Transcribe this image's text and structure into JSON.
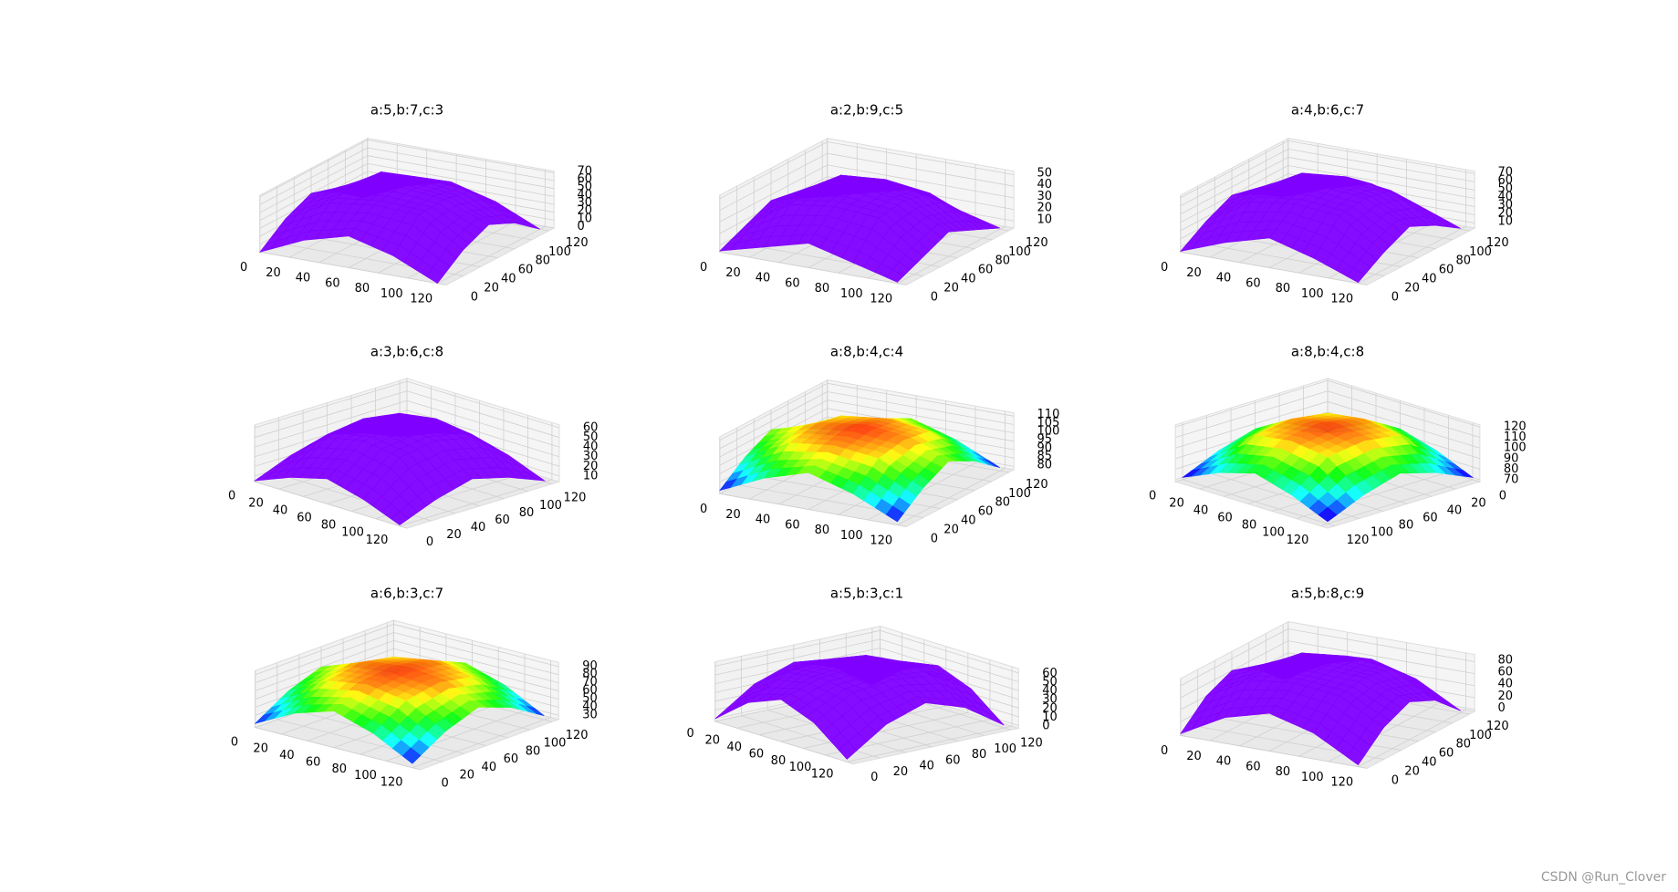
{
  "chart_data": [
    {
      "type": "surface3d",
      "title": "a:5,b:7,c:3",
      "color": "#8000ff",
      "elev": 30,
      "azim": -60,
      "x": [
        0,
        30,
        60,
        90,
        120
      ],
      "y": [
        0,
        30,
        60,
        90,
        120
      ],
      "z": [
        [
          0,
          25,
          40,
          25,
          0
        ],
        [
          25,
          55,
          62,
          60,
          25
        ],
        [
          40,
          62,
          68,
          62,
          40
        ],
        [
          25,
          60,
          62,
          55,
          25
        ],
        [
          0,
          25,
          40,
          25,
          0
        ]
      ],
      "xlim": [
        0,
        126
      ],
      "ylim": [
        0,
        126
      ],
      "zlim": [
        0,
        72
      ],
      "xticks": [
        0,
        20,
        40,
        60,
        80,
        100,
        120
      ],
      "yticks": [
        0,
        20,
        40,
        60,
        80,
        100,
        120
      ],
      "zticks": [
        0,
        10,
        20,
        30,
        40,
        50,
        60,
        70
      ]
    },
    {
      "type": "surface3d",
      "title": "a:2,b:9,c:5",
      "color": "#8000ff",
      "elev": 30,
      "azim": -60,
      "x": [
        0,
        30,
        60,
        90,
        120
      ],
      "y": [
        0,
        30,
        60,
        90,
        120
      ],
      "z": [
        [
          5,
          15,
          25,
          15,
          5
        ],
        [
          15,
          40,
          45,
          42,
          15
        ],
        [
          25,
          45,
          50,
          45,
          25
        ],
        [
          15,
          42,
          45,
          40,
          15
        ],
        [
          5,
          15,
          25,
          15,
          5
        ]
      ],
      "xlim": [
        0,
        126
      ],
      "ylim": [
        0,
        126
      ],
      "zlim": [
        4,
        53
      ],
      "xticks": [
        0,
        20,
        40,
        60,
        80,
        100,
        120
      ],
      "yticks": [
        0,
        20,
        40,
        60,
        80,
        100,
        120
      ],
      "zticks": [
        10,
        20,
        30,
        40,
        50
      ]
    },
    {
      "type": "surface3d",
      "title": "a:4,b:6,c:7",
      "color": "#8000ff",
      "elev": 30,
      "azim": -60,
      "x": [
        0,
        30,
        60,
        90,
        120
      ],
      "y": [
        0,
        30,
        60,
        90,
        120
      ],
      "z": [
        [
          5,
          25,
          40,
          25,
          5
        ],
        [
          25,
          58,
          65,
          60,
          25
        ],
        [
          40,
          65,
          70,
          65,
          40
        ],
        [
          25,
          60,
          65,
          58,
          25
        ],
        [
          5,
          25,
          40,
          25,
          5
        ]
      ],
      "xlim": [
        0,
        126
      ],
      "ylim": [
        0,
        126
      ],
      "zlim": [
        4,
        73
      ],
      "xticks": [
        0,
        20,
        40,
        60,
        80,
        100,
        120
      ],
      "yticks": [
        0,
        20,
        40,
        60,
        80,
        100,
        120
      ],
      "zticks": [
        10,
        20,
        30,
        40,
        50,
        60,
        70
      ]
    },
    {
      "type": "surface3d",
      "title": "a:3,b:6,c:8",
      "color": "#8000ff",
      "elev": 30,
      "azim": -45,
      "x": [
        0,
        30,
        60,
        90,
        120
      ],
      "y": [
        0,
        30,
        60,
        90,
        120
      ],
      "z": [
        [
          5,
          20,
          30,
          20,
          5
        ],
        [
          20,
          50,
          58,
          52,
          20
        ],
        [
          30,
          58,
          62,
          58,
          30
        ],
        [
          20,
          52,
          58,
          50,
          20
        ],
        [
          5,
          20,
          30,
          20,
          5
        ]
      ],
      "xlim": [
        0,
        126
      ],
      "ylim": [
        0,
        126
      ],
      "zlim": [
        4,
        63
      ],
      "xticks": [
        0,
        20,
        40,
        60,
        80,
        100,
        120
      ],
      "yticks": [
        0,
        20,
        40,
        60,
        80,
        100,
        120
      ],
      "zticks": [
        10,
        20,
        30,
        40,
        50,
        60
      ]
    },
    {
      "type": "surface3d",
      "title": "a:8,b:4,c:4",
      "colormap": "rainbow",
      "elev": 30,
      "azim": -60,
      "x": [
        0,
        30,
        60,
        90,
        120
      ],
      "y": [
        0,
        30,
        60,
        90,
        120
      ],
      "z": [
        [
          80,
          92,
          100,
          92,
          80
        ],
        [
          92,
          105,
          108,
          105,
          92
        ],
        [
          100,
          108,
          111,
          108,
          100
        ],
        [
          92,
          105,
          108,
          105,
          92
        ],
        [
          80,
          92,
          100,
          92,
          80
        ]
      ],
      "xlim": [
        0,
        126
      ],
      "ylim": [
        0,
        126
      ],
      "zlim": [
        78,
        112
      ],
      "xticks": [
        0,
        20,
        40,
        60,
        80,
        100,
        120
      ],
      "yticks": [
        0,
        20,
        40,
        60,
        80,
        100,
        120
      ],
      "zticks": [
        80,
        85,
        90,
        95,
        100,
        105,
        110
      ]
    },
    {
      "type": "surface3d",
      "title": "a:8,b:4,c:8",
      "colormap": "rainbow",
      "elev": 30,
      "azim": 45,
      "x": [
        0,
        30,
        60,
        90,
        120
      ],
      "y": [
        0,
        30,
        60,
        90,
        120
      ],
      "z": [
        [
          70,
          85,
          95,
          85,
          70
        ],
        [
          85,
          110,
          115,
          110,
          85
        ],
        [
          95,
          115,
          120,
          115,
          95
        ],
        [
          85,
          110,
          115,
          110,
          85
        ],
        [
          70,
          85,
          95,
          85,
          70
        ]
      ],
      "xlim": [
        0,
        126
      ],
      "ylim": [
        0,
        126
      ],
      "zlim": [
        68,
        122
      ],
      "xticks": [
        0,
        20,
        40,
        60,
        80,
        100,
        120
      ],
      "yticks": [
        0,
        20,
        40,
        60,
        80,
        100,
        120
      ],
      "zticks": [
        70,
        80,
        90,
        100,
        110,
        120
      ]
    },
    {
      "type": "surface3d",
      "title": "a:6,b:3,c:7",
      "colormap": "rainbow",
      "elev": 30,
      "azim": -50,
      "x": [
        0,
        30,
        60,
        90,
        120
      ],
      "y": [
        0,
        30,
        60,
        90,
        120
      ],
      "z": [
        [
          30,
          55,
          70,
          55,
          30
        ],
        [
          55,
          80,
          88,
          80,
          55
        ],
        [
          70,
          88,
          92,
          88,
          70
        ],
        [
          55,
          80,
          88,
          80,
          55
        ],
        [
          30,
          55,
          70,
          55,
          30
        ]
      ],
      "xlim": [
        0,
        126
      ],
      "ylim": [
        0,
        126
      ],
      "zlim": [
        25,
        95
      ],
      "xticks": [
        0,
        20,
        40,
        60,
        80,
        100,
        120
      ],
      "yticks": [
        0,
        20,
        40,
        60,
        80,
        100,
        120
      ],
      "zticks": [
        30,
        40,
        50,
        60,
        70,
        80,
        90
      ]
    },
    {
      "type": "surface3d",
      "title": "a:5,b:3,c:1",
      "color": "#8000ff",
      "elev": 25,
      "azim": -40,
      "x": [
        0,
        30,
        60,
        90,
        120
      ],
      "y": [
        0,
        30,
        60,
        90,
        120
      ],
      "z": [
        [
          0,
          30,
          45,
          30,
          0
        ],
        [
          30,
          55,
          60,
          55,
          30
        ],
        [
          45,
          60,
          63,
          60,
          45
        ],
        [
          30,
          55,
          60,
          55,
          30
        ],
        [
          0,
          30,
          45,
          30,
          0
        ]
      ],
      "xlim": [
        0,
        126
      ],
      "ylim": [
        0,
        126
      ],
      "zlim": [
        -3,
        65
      ],
      "xticks": [
        0,
        20,
        40,
        60,
        80,
        100,
        120
      ],
      "yticks": [
        0,
        20,
        40,
        60,
        80,
        100,
        120
      ],
      "zticks": [
        0,
        10,
        20,
        30,
        40,
        50,
        60
      ]
    },
    {
      "type": "surface3d",
      "title": "a:5,b:8,c:9",
      "color": "#8000ff",
      "elev": 30,
      "azim": -60,
      "x": [
        0,
        30,
        60,
        90,
        120
      ],
      "y": [
        0,
        30,
        60,
        90,
        120
      ],
      "z": [
        [
          0,
          40,
          60,
          40,
          0
        ],
        [
          40,
          80,
          88,
          80,
          40
        ],
        [
          60,
          88,
          90,
          88,
          60
        ],
        [
          40,
          80,
          88,
          80,
          40
        ],
        [
          0,
          40,
          60,
          40,
          0
        ]
      ],
      "xlim": [
        0,
        126
      ],
      "ylim": [
        0,
        126
      ],
      "zlim": [
        -3,
        92
      ],
      "xticks": [
        0,
        20,
        40,
        60,
        80,
        100,
        120
      ],
      "yticks": [
        0,
        20,
        40,
        60,
        80,
        100,
        120
      ],
      "zticks": [
        0,
        20,
        40,
        60,
        80
      ]
    }
  ],
  "watermark": "CSDN @Run_Clover"
}
